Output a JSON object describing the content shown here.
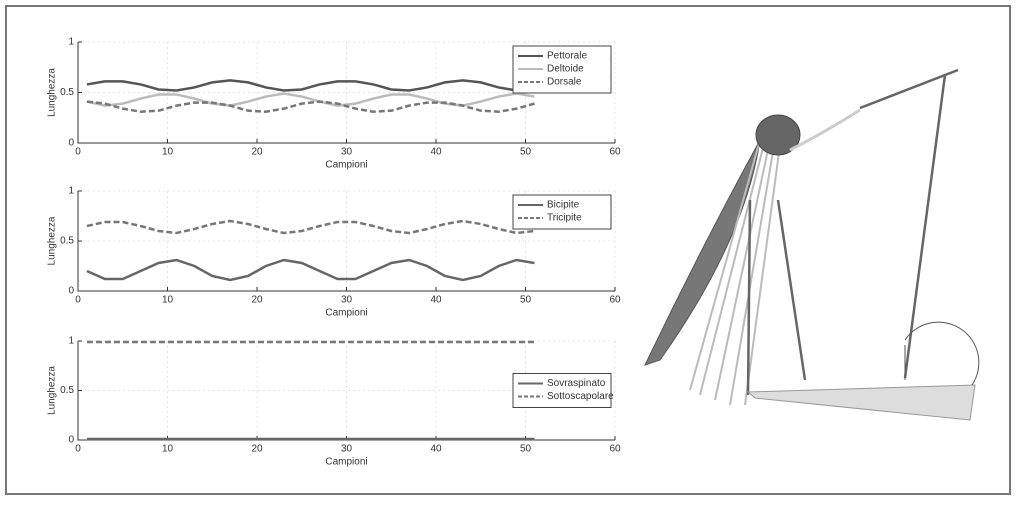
{
  "chart_data": [
    {
      "type": "line",
      "xlabel": "Campioni",
      "ylabel": "Lunghezza",
      "x": [
        1,
        3,
        5,
        7,
        9,
        11,
        13,
        15,
        17,
        19,
        21,
        23,
        25,
        27,
        29,
        31,
        33,
        35,
        37,
        39,
        41,
        43,
        45,
        47,
        49,
        51
      ],
      "xlim": [
        0,
        60
      ],
      "xticks": [
        0,
        10,
        20,
        30,
        40,
        50,
        60
      ],
      "ylim": [
        0,
        1
      ],
      "yticks": [
        0,
        0.5,
        1
      ],
      "grid": true,
      "legend": "upper right",
      "series": [
        {
          "name": "Pettorale",
          "color": "#555555",
          "dash": false,
          "values": [
            0.58,
            0.61,
            0.61,
            0.58,
            0.53,
            0.52,
            0.55,
            0.6,
            0.62,
            0.6,
            0.55,
            0.52,
            0.53,
            0.58,
            0.61,
            0.61,
            0.58,
            0.53,
            0.52,
            0.55,
            0.6,
            0.62,
            0.6,
            0.55,
            0.52,
            0.53
          ]
        },
        {
          "name": "Deltoide",
          "color": "#bbbbbb",
          "dash": false,
          "values": [
            0.41,
            0.37,
            0.39,
            0.44,
            0.48,
            0.48,
            0.44,
            0.39,
            0.37,
            0.41,
            0.46,
            0.49,
            0.46,
            0.41,
            0.37,
            0.39,
            0.44,
            0.48,
            0.48,
            0.44,
            0.39,
            0.37,
            0.41,
            0.46,
            0.49,
            0.46
          ]
        },
        {
          "name": "Dorsale",
          "color": "#777777",
          "dash": true,
          "values": [
            0.41,
            0.39,
            0.34,
            0.31,
            0.32,
            0.37,
            0.4,
            0.4,
            0.37,
            0.32,
            0.31,
            0.34,
            0.39,
            0.41,
            0.39,
            0.34,
            0.31,
            0.32,
            0.37,
            0.4,
            0.4,
            0.37,
            0.32,
            0.31,
            0.34,
            0.39
          ]
        }
      ]
    },
    {
      "type": "line",
      "xlabel": "Campioni",
      "ylabel": "Lunghezza",
      "x": [
        1,
        3,
        5,
        7,
        9,
        11,
        13,
        15,
        17,
        19,
        21,
        23,
        25,
        27,
        29,
        31,
        33,
        35,
        37,
        39,
        41,
        43,
        45,
        47,
        49,
        51
      ],
      "xlim": [
        0,
        60
      ],
      "xticks": [
        0,
        10,
        20,
        30,
        40,
        50,
        60
      ],
      "ylim": [
        0,
        1
      ],
      "yticks": [
        0,
        0.5,
        1
      ],
      "grid": true,
      "legend": "upper right",
      "series": [
        {
          "name": "Bicipite",
          "color": "#666666",
          "dash": false,
          "values": [
            0.2,
            0.12,
            0.12,
            0.2,
            0.28,
            0.31,
            0.25,
            0.15,
            0.11,
            0.15,
            0.25,
            0.31,
            0.28,
            0.2,
            0.12,
            0.12,
            0.2,
            0.28,
            0.31,
            0.25,
            0.15,
            0.11,
            0.15,
            0.25,
            0.31,
            0.28
          ]
        },
        {
          "name": "Tricipite",
          "color": "#777777",
          "dash": true,
          "values": [
            0.65,
            0.69,
            0.69,
            0.65,
            0.6,
            0.58,
            0.62,
            0.67,
            0.7,
            0.67,
            0.62,
            0.58,
            0.6,
            0.65,
            0.69,
            0.69,
            0.65,
            0.6,
            0.58,
            0.62,
            0.67,
            0.7,
            0.67,
            0.62,
            0.58,
            0.6
          ]
        }
      ]
    },
    {
      "type": "line",
      "xlabel": "Campioni",
      "ylabel": "Lunghezza",
      "x": [
        1,
        51
      ],
      "xlim": [
        0,
        60
      ],
      "xticks": [
        0,
        10,
        20,
        30,
        40,
        50,
        60
      ],
      "ylim": [
        0,
        1
      ],
      "yticks": [
        0,
        0.5,
        1
      ],
      "grid": true,
      "legend": "center right",
      "series": [
        {
          "name": "Sovraspinato",
          "color": "#666666",
          "dash": false,
          "values": [
            0.01,
            0.01
          ]
        },
        {
          "name": "Sottoscapolare",
          "color": "#777777",
          "dash": true,
          "values": [
            0.99,
            0.99
          ]
        }
      ]
    }
  ]
}
